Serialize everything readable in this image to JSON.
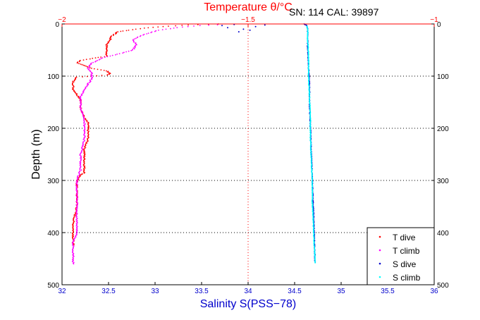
{
  "sn_cal_label": "SN: 114  CAL: 39897",
  "chart_data": {
    "type": "scatter",
    "title": "",
    "top_axis": {
      "label": "Temperature θ/°C",
      "range": [
        -2,
        -1
      ],
      "ticks": [
        -2,
        -1.5,
        -1
      ],
      "tick_labels": [
        "−2",
        "−1.5",
        "−1"
      ],
      "color": "#ff0000"
    },
    "bottom_axis": {
      "label": "Salinity S(PSS−78)",
      "range": [
        32,
        36
      ],
      "ticks": [
        32,
        32.5,
        33,
        33.5,
        34,
        34.5,
        35,
        35.5,
        36
      ],
      "tick_labels": [
        "32",
        "32.5",
        "33",
        "33.5",
        "34",
        "34.5",
        "35",
        "35.5",
        "36"
      ],
      "color": "#0000cc"
    },
    "y_axis": {
      "label": "Depth (m)",
      "range": [
        0,
        500
      ],
      "reversed": true,
      "ticks": [
        0,
        100,
        200,
        300,
        400,
        500
      ],
      "tick_labels": [
        "0",
        "100",
        "200",
        "300",
        "400",
        "500"
      ]
    },
    "grid": "dotted horizontal at depth ticks, dotted vertical at salinity 34",
    "legend": {
      "position": "bottom-right",
      "entries": [
        {
          "label": "T dive",
          "color": "#ff0000"
        },
        {
          "label": "T climb",
          "color": "#ff00ff"
        },
        {
          "label": "S dive",
          "color": "#0000cc"
        },
        {
          "label": "S climb",
          "color": "#00ffff"
        }
      ]
    },
    "series": [
      {
        "name": "T dive",
        "axis": "temperature",
        "color": "#ff0000",
        "points": [
          [
            -1.58,
            0
          ],
          [
            -1.66,
            2
          ],
          [
            -1.73,
            5
          ],
          [
            -1.78,
            8
          ],
          [
            -1.82,
            12
          ],
          [
            -1.85,
            15
          ],
          [
            -1.86,
            20
          ],
          [
            -1.87,
            25
          ],
          [
            -1.87,
            30
          ],
          [
            -1.88,
            40
          ],
          [
            -1.88,
            55
          ],
          [
            -1.88,
            62
          ],
          [
            -1.91,
            65
          ],
          [
            -1.95,
            70
          ],
          [
            -1.96,
            75
          ],
          [
            -1.94,
            80
          ],
          [
            -1.92,
            85
          ],
          [
            -1.88,
            90
          ],
          [
            -1.87,
            95
          ],
          [
            -1.88,
            98
          ],
          [
            -1.92,
            100
          ],
          [
            -1.96,
            102
          ],
          [
            -1.97,
            110
          ],
          [
            -1.97,
            125
          ],
          [
            -1.96,
            135
          ],
          [
            -1.95,
            145
          ],
          [
            -1.95,
            160
          ],
          [
            -1.94,
            180
          ],
          [
            -1.93,
            190
          ],
          [
            -1.93,
            200
          ],
          [
            -1.93,
            220
          ],
          [
            -1.94,
            240
          ],
          [
            -1.94,
            255
          ],
          [
            -1.94,
            265
          ],
          [
            -1.94,
            275
          ],
          [
            -1.94,
            285
          ],
          [
            -1.95,
            290
          ],
          [
            -1.96,
            300
          ],
          [
            -1.96,
            320
          ],
          [
            -1.96,
            350
          ],
          [
            -1.97,
            380
          ],
          [
            -1.97,
            400
          ],
          [
            -1.97,
            410
          ],
          [
            -1.97,
            425
          ]
        ]
      },
      {
        "name": "T climb",
        "axis": "temperature",
        "color": "#ff00ff",
        "points": [
          [
            -1.97,
            460
          ],
          [
            -1.97,
            440
          ],
          [
            -1.97,
            420
          ],
          [
            -1.96,
            400
          ],
          [
            -1.96,
            380
          ],
          [
            -1.96,
            350
          ],
          [
            -1.96,
            320
          ],
          [
            -1.96,
            300
          ],
          [
            -1.95,
            280
          ],
          [
            -1.95,
            250
          ],
          [
            -1.94,
            220
          ],
          [
            -1.94,
            200
          ],
          [
            -1.94,
            180
          ],
          [
            -1.95,
            160
          ],
          [
            -1.95,
            140
          ],
          [
            -1.94,
            125
          ],
          [
            -1.93,
            115
          ],
          [
            -1.92,
            105
          ],
          [
            -1.92,
            95
          ],
          [
            -1.93,
            85
          ],
          [
            -1.92,
            75
          ],
          [
            -1.89,
            65
          ],
          [
            -1.85,
            58
          ],
          [
            -1.81,
            50
          ],
          [
            -1.8,
            40
          ],
          [
            -1.81,
            30
          ],
          [
            -1.78,
            20
          ],
          [
            -1.74,
            12
          ],
          [
            -1.69,
            7
          ],
          [
            -1.63,
            3
          ],
          [
            -1.56,
            1
          ]
        ]
      },
      {
        "name": "S dive",
        "axis": "salinity",
        "color": "#0000cc",
        "points": [
          [
            34.6,
            0
          ],
          [
            34.63,
            3
          ],
          [
            34.64,
            10
          ],
          [
            34.64,
            40
          ],
          [
            34.65,
            80
          ],
          [
            34.66,
            120
          ],
          [
            34.66,
            150
          ],
          [
            34.67,
            200
          ],
          [
            34.68,
            250
          ],
          [
            34.69,
            300
          ],
          [
            34.7,
            350
          ],
          [
            34.71,
            400
          ],
          [
            34.72,
            458
          ]
        ],
        "surface_scatter": [
          [
            33.72,
            3
          ],
          [
            33.78,
            7
          ],
          [
            33.9,
            15
          ],
          [
            33.95,
            10
          ],
          [
            34.02,
            12
          ],
          [
            34.08,
            5
          ],
          [
            34.18,
            2
          ],
          [
            33.85,
            1
          ]
        ]
      },
      {
        "name": "S climb",
        "axis": "salinity",
        "color": "#00ffff",
        "points": [
          [
            34.72,
            458
          ],
          [
            34.71,
            420
          ],
          [
            34.7,
            380
          ],
          [
            34.69,
            340
          ],
          [
            34.69,
            300
          ],
          [
            34.68,
            260
          ],
          [
            34.67,
            220
          ],
          [
            34.67,
            180
          ],
          [
            34.66,
            140
          ],
          [
            34.65,
            100
          ],
          [
            34.65,
            60
          ],
          [
            34.64,
            30
          ],
          [
            34.64,
            10
          ],
          [
            34.63,
            3
          ]
        ]
      }
    ]
  }
}
